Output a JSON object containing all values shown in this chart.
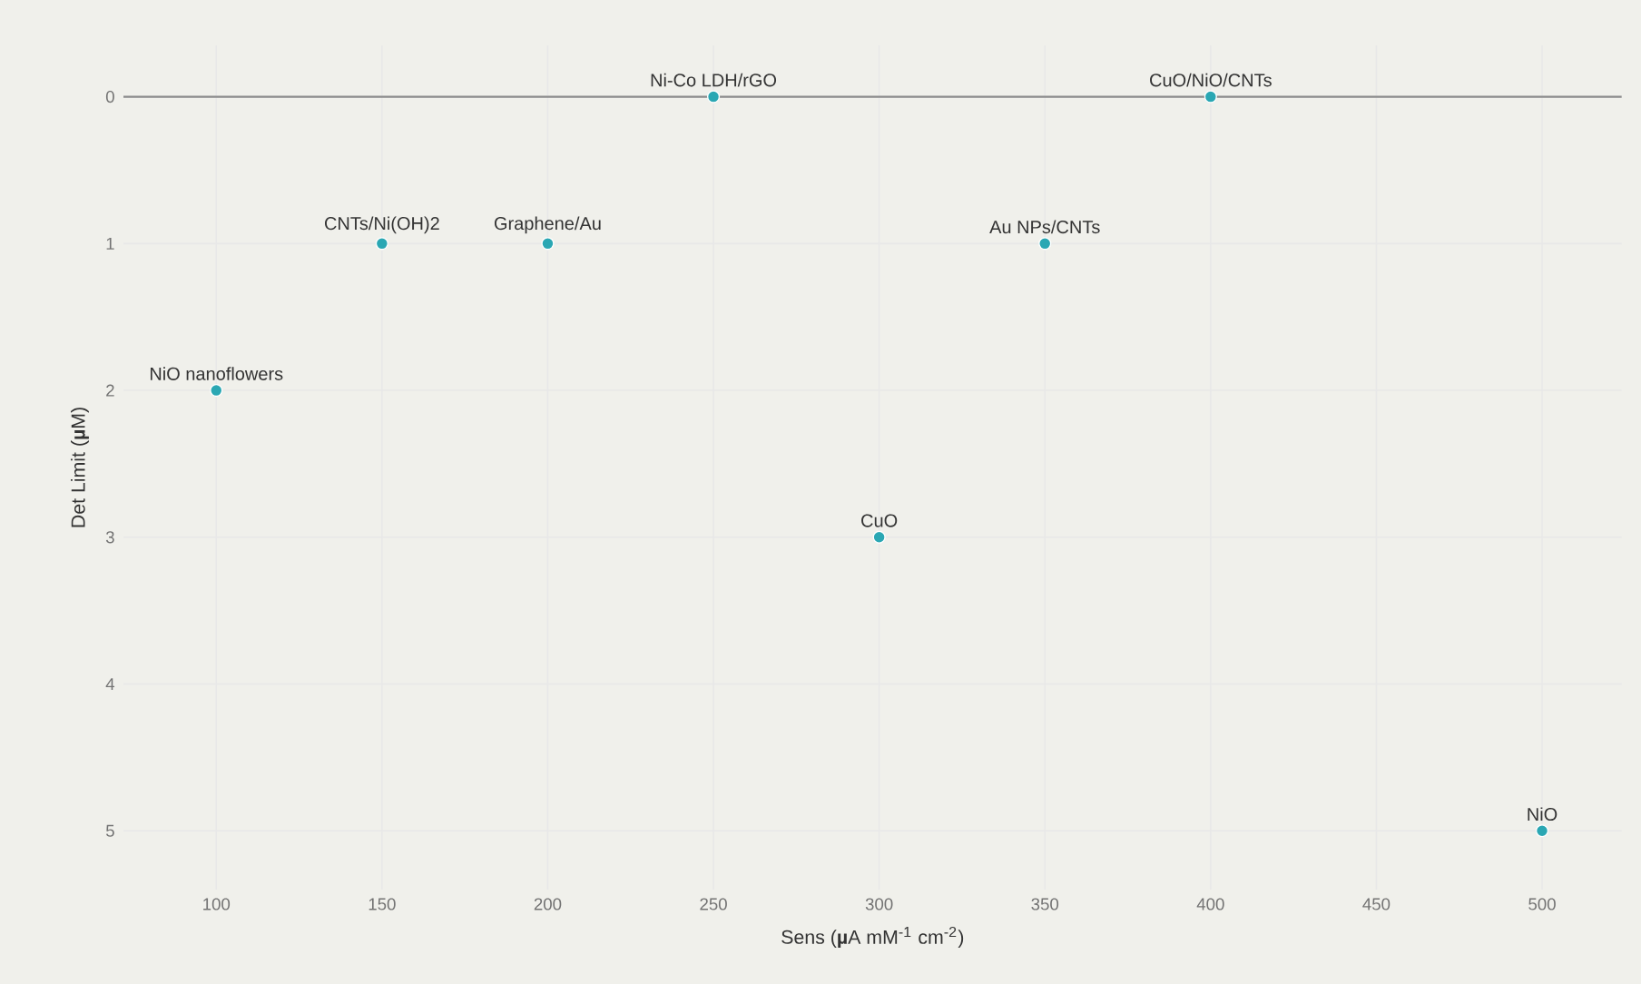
{
  "chart_data": {
    "type": "scatter",
    "xlabel": "Sens (**µ**A mM$^{-1}$ cm$^{-2}$)",
    "ylabel": "Det Limit (**µ**M)",
    "series": [
      {
        "color": "#2aa7b3",
        "x": [
          100,
          150,
          200,
          250,
          300,
          350,
          400,
          500
        ],
        "values": [
          2,
          1,
          1,
          0,
          3,
          1,
          0,
          5
        ]
      }
    ],
    "xlim": [
      72,
      524
    ],
    "xticks": [
      100,
      150,
      200,
      250,
      300,
      350,
      400,
      450,
      500
    ],
    "ylim": [
      5.4,
      -0.35
    ],
    "yticks": [
      0,
      1,
      2,
      3,
      4,
      5
    ],
    "grid": true,
    "marker": "circle",
    "ref_lines": [
      {
        "axis": "y",
        "value": 0,
        "color": "#8c8c8c"
      }
    ],
    "annotations": [
      {
        "text": "NiO nanoflowers",
        "x": 100,
        "y": 2
      },
      {
        "text": "CNTs/Ni(OH)2",
        "x": 150,
        "y": 1
      },
      {
        "text": "Graphene/Au",
        "x": 200,
        "y": 1
      },
      {
        "text": "Ni-Co LDH/rGO",
        "x": 250,
        "y": 0
      },
      {
        "text": "CuO",
        "x": 300,
        "y": 3
      },
      {
        "text": "Au NPs/CNTs",
        "x": 350,
        "y": 1
      },
      {
        "text": "CuO/NiO/CNTs",
        "x": 400,
        "y": 0
      },
      {
        "text": "NiO",
        "x": 500,
        "y": 5
      }
    ]
  }
}
